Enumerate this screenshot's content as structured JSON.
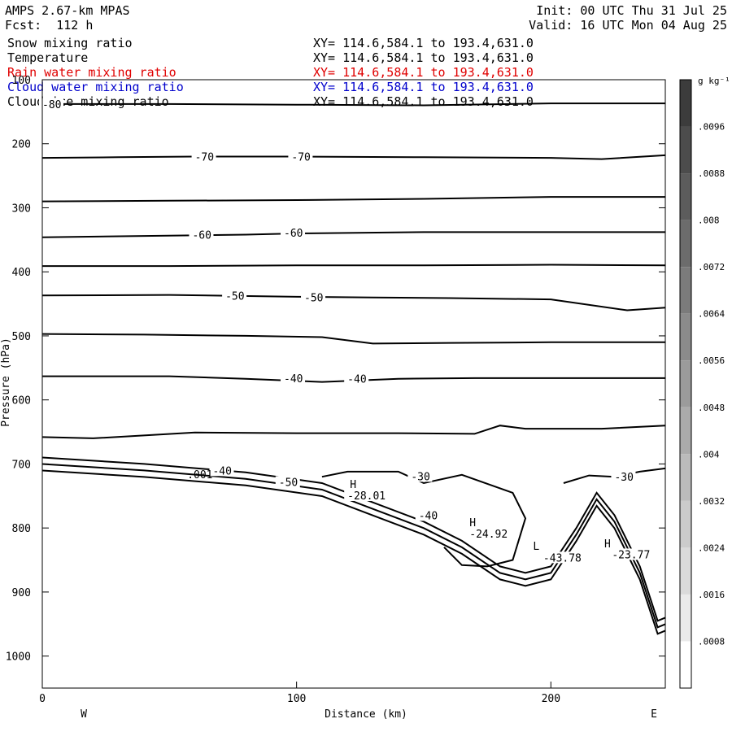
{
  "header": {
    "model": "AMPS 2.67-km MPAS",
    "fcst": "Fcst:  112 h",
    "init": "Init: 00 UTC Thu 31 Jul 25",
    "valid": "Valid: 16 UTC Mon 04 Aug 25"
  },
  "legend": [
    {
      "name": "Snow mixing ratio",
      "xy": "XY= 114.6,584.1 to 193.4,631.0",
      "color": "#000000"
    },
    {
      "name": "Temperature",
      "xy": "XY= 114.6,584.1 to 193.4,631.0",
      "color": "#000000"
    },
    {
      "name": "Rain water mixing ratio",
      "xy": "XY= 114.6,584.1 to 193.4,631.0",
      "color": "#e00000"
    },
    {
      "name": "Cloud water mixing ratio",
      "xy": "XY= 114.6,584.1 to 193.4,631.0",
      "color": "#0000cc"
    },
    {
      "name": "Cloud ice mixing ratio",
      "xy": "XY= 114.6,584.1 to 193.4,631.0",
      "color": "#000000"
    }
  ],
  "chart_data": {
    "type": "contour",
    "xlabel": "Distance (km)",
    "ylabel": "Pressure (hPa)",
    "xlim": [
      0,
      245
    ],
    "ylim": [
      1050,
      100
    ],
    "x_ticks": [
      0,
      100,
      200
    ],
    "y_ticks": [
      100,
      200,
      300,
      400,
      500,
      600,
      700,
      800,
      900,
      1000
    ],
    "left_label": "W",
    "right_label": "E",
    "isotherms": [
      {
        "level": -80,
        "points": [
          [
            0,
            138
          ],
          [
            50,
            138
          ],
          [
            100,
            139
          ],
          [
            150,
            140
          ],
          [
            200,
            137
          ],
          [
            245,
            137
          ]
        ]
      },
      {
        "level": -70,
        "points": [
          [
            0,
            222
          ],
          [
            30,
            221
          ],
          [
            60,
            220
          ],
          [
            100,
            220
          ],
          [
            150,
            221
          ],
          [
            200,
            222
          ],
          [
            220,
            224
          ],
          [
            245,
            218
          ]
        ]
      },
      {
        "level": null,
        "points": [
          [
            0,
            290
          ],
          [
            50,
            289
          ],
          [
            100,
            288
          ],
          [
            150,
            286
          ],
          [
            200,
            283
          ],
          [
            245,
            283
          ]
        ]
      },
      {
        "level": -60,
        "points": [
          [
            0,
            346
          ],
          [
            40,
            344
          ],
          [
            80,
            342
          ],
          [
            100,
            340
          ],
          [
            150,
            338
          ],
          [
            200,
            338
          ],
          [
            245,
            338
          ]
        ]
      },
      {
        "level": null,
        "points": [
          [
            0,
            391
          ],
          [
            50,
            391
          ],
          [
            100,
            390
          ],
          [
            150,
            390
          ],
          [
            200,
            389
          ],
          [
            245,
            390
          ]
        ]
      },
      {
        "level": -50,
        "points": [
          [
            0,
            437
          ],
          [
            50,
            436
          ],
          [
            100,
            439
          ],
          [
            130,
            440
          ],
          [
            160,
            441
          ],
          [
            200,
            443
          ],
          [
            230,
            460
          ],
          [
            245,
            456
          ]
        ]
      },
      {
        "level": null,
        "points": [
          [
            0,
            497
          ],
          [
            40,
            498
          ],
          [
            80,
            500
          ],
          [
            110,
            502
          ],
          [
            130,
            512
          ],
          [
            160,
            511
          ],
          [
            200,
            510
          ],
          [
            245,
            510
          ]
        ]
      },
      {
        "level": -40,
        "points": [
          [
            0,
            563
          ],
          [
            50,
            563
          ],
          [
            80,
            567
          ],
          [
            110,
            572
          ],
          [
            140,
            567
          ],
          [
            170,
            566
          ],
          [
            200,
            566
          ],
          [
            245,
            566
          ]
        ]
      },
      {
        "level": null,
        "points": [
          [
            0,
            658
          ],
          [
            20,
            660
          ],
          [
            60,
            651
          ],
          [
            100,
            652
          ],
          [
            140,
            652
          ],
          [
            170,
            653
          ],
          [
            180,
            640
          ],
          [
            190,
            645
          ],
          [
            220,
            645
          ],
          [
            245,
            640
          ]
        ]
      },
      {
        "level": -30,
        "points": [
          [
            110,
            720
          ],
          [
            120,
            712
          ],
          [
            140,
            712
          ],
          [
            150,
            730
          ],
          [
            165,
            717
          ],
          [
            185,
            745
          ],
          [
            190,
            785
          ],
          [
            185,
            850
          ],
          [
            175,
            860
          ],
          [
            165,
            858
          ],
          [
            158,
            830
          ]
        ]
      },
      {
        "level": -30,
        "points": [
          [
            205,
            730
          ],
          [
            215,
            718
          ],
          [
            225,
            720
          ],
          [
            235,
            712
          ],
          [
            245,
            707
          ]
        ]
      }
    ],
    "annotations": [
      {
        "text": "-80",
        "x": 0,
        "p": 138
      },
      {
        "text": "-70",
        "x": 60,
        "p": 220
      },
      {
        "text": "-70",
        "x": 98,
        "p": 220
      },
      {
        "text": "-60",
        "x": 59,
        "p": 342
      },
      {
        "text": "-60",
        "x": 95,
        "p": 339
      },
      {
        "text": "-50",
        "x": 72,
        "p": 437
      },
      {
        "text": "-50",
        "x": 103,
        "p": 440
      },
      {
        "text": "-40",
        "x": 95,
        "p": 566
      },
      {
        "text": "-40",
        "x": 120,
        "p": 567
      },
      {
        "text": "-40",
        "x": 67,
        "p": 710
      },
      {
        "text": "-50",
        "x": 93,
        "p": 728
      },
      {
        "text": "-40",
        "x": 148,
        "p": 780
      },
      {
        "text": "-30",
        "x": 145,
        "p": 719
      },
      {
        "text": "-30",
        "x": 225,
        "p": 720
      },
      {
        "text": ".001",
        "x": 57,
        "p": 716
      },
      {
        "text": "H",
        "x": 121,
        "p": 731
      },
      {
        "text": "-28.01",
        "x": 120,
        "p": 749
      },
      {
        "text": "H",
        "x": 168,
        "p": 791
      },
      {
        "text": "-24.92",
        "x": 168,
        "p": 809
      },
      {
        "text": "L",
        "x": 193,
        "p": 828
      },
      {
        "text": "-43.78",
        "x": 197,
        "p": 846
      },
      {
        "text": "H",
        "x": 221,
        "p": 824
      },
      {
        "text": "-23.77",
        "x": 224,
        "p": 841
      }
    ],
    "colorbar": {
      "unit": "g kg⁻¹",
      "labels": [
        ".0096",
        ".0088",
        ".008",
        ".0072",
        ".0064",
        ".0056",
        ".0048",
        ".004",
        ".0032",
        ".0024",
        ".0016",
        ".0008"
      ]
    }
  }
}
